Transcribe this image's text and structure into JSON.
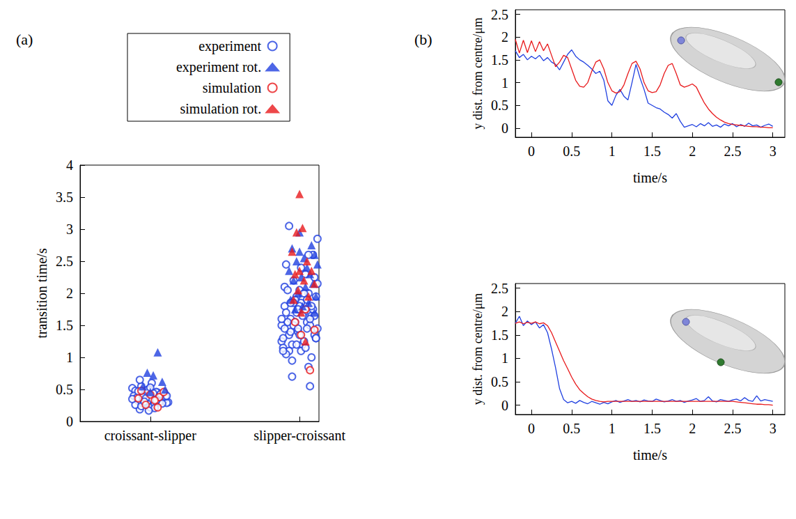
{
  "chart_data": [
    {
      "type": "scatter",
      "panel_label": "(a)",
      "y_label": "transition time/s",
      "xlim": [
        0.53,
        2.13
      ],
      "xticks": [
        {
          "value": 1,
          "label": "croissant-slipper"
        },
        {
          "value": 2,
          "label": "slipper-croissant"
        }
      ],
      "ylim": [
        0,
        4
      ],
      "yticks": [
        0,
        0.5,
        1,
        1.5,
        2,
        2.5,
        3,
        3.5,
        4
      ],
      "grid": false,
      "legend": "top",
      "series": [
        {
          "name": "experiment",
          "color": "#2040e0",
          "marker": "open_circle",
          "x": [
            0.92,
            1.05,
            0.98,
            1.1,
            0.88,
            1.02,
            0.95,
            1.08,
            0.9,
            1.0,
            1.12,
            0.94,
            1.06,
            0.97,
            1.03,
            0.89,
            1.09,
            0.99,
            0.93,
            1.04,
            1.11,
            0.91,
            1.01,
            0.96,
            1.07,
            0.9,
            1.05,
            0.98,
            1.1,
            0.94,
            1.02,
            0.88,
            1.06,
            1.0,
            0.95,
            1.08,
            0.92,
            1.03,
            0.97,
            1.11,
            0.93,
            1.04,
            0.99,
            1.07,
            0.96,
            1.95,
            2.05,
            1.9,
            2.1,
            2.0,
            1.93,
            2.08,
            1.98,
            2.12,
            1.88,
            2.03,
            1.96,
            2.07,
            1.91,
            2.01,
            2.11,
            1.94,
            2.06,
            1.99,
            1.89,
            2.09,
            1.97,
            2.04,
            1.92,
            2.02,
            2.1,
            1.95,
            2.05,
            1.9,
            2.0,
            1.93,
            2.08,
            1.98,
            2.12,
            1.88,
            2.03,
            1.96,
            2.07,
            1.91,
            2.01,
            2.11,
            1.94,
            2.06,
            1.99,
            1.89,
            2.09,
            1.97,
            2.04,
            1.92,
            2.02,
            1.95,
            2.05,
            1.9,
            2.1,
            2.0,
            1.93,
            2.08,
            1.98,
            2.12,
            1.88,
            2.03,
            1.96,
            2.07,
            1.91,
            2.01,
            2.11,
            1.94,
            2.06,
            1.99,
            1.89
          ],
          "values": [
            0.32,
            0.45,
            0.28,
            0.38,
            0.52,
            0.25,
            0.41,
            0.35,
            0.48,
            0.22,
            0.3,
            0.55,
            0.36,
            0.43,
            0.27,
            0.4,
            0.33,
            0.5,
            0.19,
            0.46,
            0.29,
            0.37,
            0.6,
            0.31,
            0.42,
            0.26,
            0.34,
            0.49,
            0.39,
            0.24,
            0.44,
            0.35,
            0.3,
            0.53,
            0.38,
            0.28,
            0.47,
            0.21,
            0.36,
            0.4,
            0.65,
            0.33,
            0.17,
            0.43,
            0.31,
            1.2,
            1.55,
            1.8,
            1.35,
            2.05,
            1.1,
            1.65,
            1.95,
            1.45,
            1.25,
            1.7,
            2.2,
            1.5,
            1.05,
            1.85,
            1.3,
            1.6,
            2.0,
            1.4,
            1.15,
            1.75,
            1.9,
            2.3,
            1.55,
            1.2,
            1.65,
            0.95,
            1.45,
            2.1,
            1.8,
            1.35,
            1.0,
            1.7,
            2.15,
            1.5,
            1.25,
            1.85,
            1.6,
            2.45,
            1.1,
            1.95,
            1.4,
            0.85,
            1.75,
            1.3,
            2.6,
            1.55,
            1.15,
            2.05,
            1.65,
            0.7,
            1.9,
            1.45,
            2.25,
            1.35,
            3.05,
            1.8,
            1.2,
            2.85,
            1.6,
            2.0,
            1.5,
            0.55,
            1.7,
            2.4,
            1.3,
            1.85,
            2.6,
            1.45,
            1.1
          ]
        },
        {
          "name": "experiment rot.",
          "color": "#2040e0",
          "marker": "triangle",
          "x": [
            1.05,
            0.98,
            1.02,
            1.08,
            0.95,
            1.1,
            1.0,
            2.0,
            2.08,
            1.95,
            2.1,
            2.03,
            1.98,
            2.12,
            2.05,
            1.93,
            2.07,
            2.01,
            1.96,
            2.09,
            2.04,
            1.99,
            2.11,
            1.94,
            2.06,
            2.02,
            1.97,
            2.1,
            2.0
          ],
          "values": [
            1.08,
            0.76,
            0.72,
            0.62,
            0.55,
            0.5,
            0.46,
            2.95,
            2.75,
            2.7,
            2.6,
            2.55,
            2.5,
            2.45,
            2.4,
            2.35,
            2.3,
            2.25,
            2.2,
            2.15,
            2.1,
            2.0,
            1.95,
            1.9,
            1.85,
            1.8,
            1.75,
            1.7,
            2.65
          ]
        },
        {
          "name": "simulation",
          "color": "#e8191b",
          "marker": "open_circle",
          "x": [
            0.94,
            1.0,
            1.06,
            0.97,
            1.03,
            1.09,
            0.92,
            1.05,
            1.97,
            2.04,
            2.1,
            2.07,
            2.01
          ],
          "values": [
            0.48,
            0.42,
            0.38,
            0.26,
            0.33,
            0.46,
            0.36,
            0.22,
            1.55,
            1.75,
            1.43,
            0.8,
            1.35
          ]
        },
        {
          "name": "simulation rot.",
          "color": "#e8191b",
          "marker": "triangle",
          "x": [
            2.0,
            2.02,
            1.98,
            1.95,
            2.05,
            2.0,
            2.08,
            1.97,
            2.03,
            2.1,
            1.99,
            2.06,
            1.96,
            2.04,
            2.01
          ],
          "values": [
            3.55,
            3.02,
            2.95,
            2.65,
            2.5,
            2.35,
            2.35,
            2.3,
            2.2,
            2.15,
            2.05,
            1.95,
            1.9,
            1.25,
            1.7
          ]
        }
      ]
    },
    {
      "type": "line",
      "panel_label": "(b)",
      "x_label": "time/s",
      "y_label": "y dist. from centre/μm",
      "xlim": [
        -0.2,
        3.15
      ],
      "xticks": [
        0,
        0.5,
        1,
        1.5,
        2,
        2.5,
        3
      ],
      "ylim": [
        -0.2,
        2.6
      ],
      "yticks": [
        0,
        0.5,
        1,
        1.5,
        2,
        2.5
      ],
      "grid": false,
      "x": [
        -0.2,
        -0.15,
        -0.1,
        -0.05,
        0,
        0.05,
        0.1,
        0.15,
        0.2,
        0.25,
        0.3,
        0.35,
        0.4,
        0.45,
        0.5,
        0.55,
        0.6,
        0.65,
        0.7,
        0.75,
        0.8,
        0.85,
        0.9,
        0.95,
        1,
        1.05,
        1.1,
        1.15,
        1.2,
        1.25,
        1.3,
        1.35,
        1.4,
        1.45,
        1.5,
        1.55,
        1.6,
        1.65,
        1.7,
        1.75,
        1.8,
        1.85,
        1.9,
        1.95,
        2,
        2.05,
        2.1,
        2.15,
        2.2,
        2.25,
        2.3,
        2.35,
        2.4,
        2.45,
        2.5,
        2.55,
        2.6,
        2.65,
        2.7,
        2.75,
        2.8,
        2.85,
        2.9,
        2.95,
        3
      ],
      "series": [
        {
          "color": "#2040e0",
          "values": [
            1.7,
            1.55,
            1.62,
            1.5,
            1.58,
            1.52,
            1.6,
            1.48,
            1.55,
            1.45,
            1.4,
            1.28,
            1.45,
            1.62,
            1.72,
            1.58,
            1.5,
            1.45,
            1.38,
            1.3,
            1.2,
            1.25,
            1.05,
            0.6,
            0.5,
            0.72,
            0.85,
            0.7,
            0.62,
            1.0,
            1.4,
            1.1,
            0.85,
            0.55,
            0.5,
            0.45,
            0.42,
            0.35,
            0.3,
            0.22,
            0.32,
            0.15,
            0.02,
            0.05,
            0.08,
            0.03,
            0.1,
            0.05,
            0.12,
            0.04,
            0.07,
            0.02,
            0.09,
            0.05,
            0.1,
            0.03,
            0.08,
            0.04,
            0.11,
            0.05,
            0.07,
            0.02,
            0.06,
            0.09,
            0.04
          ]
        },
        {
          "color": "#e8191b",
          "values": [
            1.95,
            1.65,
            1.93,
            1.66,
            1.92,
            1.68,
            1.9,
            1.7,
            1.85,
            1.6,
            1.35,
            1.45,
            1.6,
            1.55,
            1.3,
            1.05,
            0.92,
            0.9,
            1.0,
            1.25,
            1.45,
            1.5,
            1.3,
            1.0,
            0.82,
            0.77,
            0.8,
            0.95,
            1.2,
            1.42,
            1.47,
            1.3,
            1.0,
            0.82,
            0.78,
            0.8,
            0.95,
            1.2,
            1.38,
            1.42,
            1.2,
            0.95,
            0.9,
            0.93,
            0.97,
            0.9,
            0.72,
            0.55,
            0.42,
            0.32,
            0.24,
            0.18,
            0.13,
            0.1,
            0.08,
            0.07,
            0.06,
            0.05,
            0.04,
            0.03,
            0.03,
            0.02,
            0.02,
            0.01,
            0.01
          ]
        }
      ]
    },
    {
      "type": "line",
      "x_label": "time/s",
      "y_label": "y dist. from centre/μm",
      "xlim": [
        -0.2,
        3.15
      ],
      "xticks": [
        0,
        0.5,
        1,
        1.5,
        2,
        2.5,
        3
      ],
      "ylim": [
        -0.2,
        2.6
      ],
      "yticks": [
        0,
        0.5,
        1,
        1.5,
        2,
        2.5
      ],
      "grid": false,
      "x": [
        -0.2,
        -0.15,
        -0.1,
        -0.05,
        0,
        0.05,
        0.1,
        0.15,
        0.2,
        0.25,
        0.3,
        0.35,
        0.4,
        0.45,
        0.5,
        0.55,
        0.6,
        0.65,
        0.7,
        0.75,
        0.8,
        0.85,
        0.9,
        0.95,
        1,
        1.05,
        1.1,
        1.15,
        1.2,
        1.25,
        1.3,
        1.35,
        1.4,
        1.45,
        1.5,
        1.55,
        1.6,
        1.65,
        1.7,
        1.75,
        1.8,
        1.85,
        1.9,
        1.95,
        2,
        2.05,
        2.1,
        2.15,
        2.2,
        2.25,
        2.3,
        2.35,
        2.4,
        2.45,
        2.5,
        2.55,
        2.6,
        2.65,
        2.7,
        2.75,
        2.8,
        2.85,
        2.9,
        2.95,
        3
      ],
      "series": [
        {
          "color": "#2040e0",
          "values": [
            1.75,
            1.9,
            1.7,
            1.8,
            1.72,
            1.78,
            1.65,
            1.72,
            1.55,
            1.2,
            0.8,
            0.35,
            0.12,
            0.05,
            0.08,
            0.04,
            0.1,
            0.06,
            0.03,
            0.08,
            0.05,
            0.02,
            0.06,
            0.03,
            0.07,
            0.1,
            0.06,
            0.09,
            0.12,
            0.08,
            0.1,
            0.07,
            0.11,
            0.09,
            0.08,
            0.13,
            0.1,
            0.07,
            0.09,
            0.12,
            0.08,
            0.1,
            0.06,
            0.09,
            0.11,
            0.14,
            0.08,
            0.1,
            0.18,
            0.09,
            0.07,
            0.12,
            0.1,
            0.08,
            0.11,
            0.13,
            0.09,
            0.16,
            0.1,
            0.08,
            0.2,
            0.09,
            0.12,
            0.1,
            0.08
          ]
        },
        {
          "color": "#e8191b",
          "values": [
            1.75,
            1.78,
            1.74,
            1.77,
            1.75,
            1.78,
            1.74,
            1.76,
            1.7,
            1.55,
            1.35,
            1.15,
            0.95,
            0.78,
            0.6,
            0.45,
            0.33,
            0.25,
            0.18,
            0.13,
            0.1,
            0.08,
            0.07,
            0.08,
            0.08,
            0.08,
            0.08,
            0.08,
            0.08,
            0.08,
            0.08,
            0.08,
            0.08,
            0.08,
            0.08,
            0.08,
            0.08,
            0.08,
            0.08,
            0.08,
            0.08,
            0.08,
            0.08,
            0.08,
            0.08,
            0.08,
            0.08,
            0.08,
            0.08,
            0.08,
            0.08,
            0.08,
            0.08,
            0.08,
            0.08,
            0.07,
            0.06,
            0.05,
            0.04,
            0.03,
            0.02,
            0.02,
            0.01,
            0.01,
            0.0
          ]
        }
      ]
    }
  ]
}
